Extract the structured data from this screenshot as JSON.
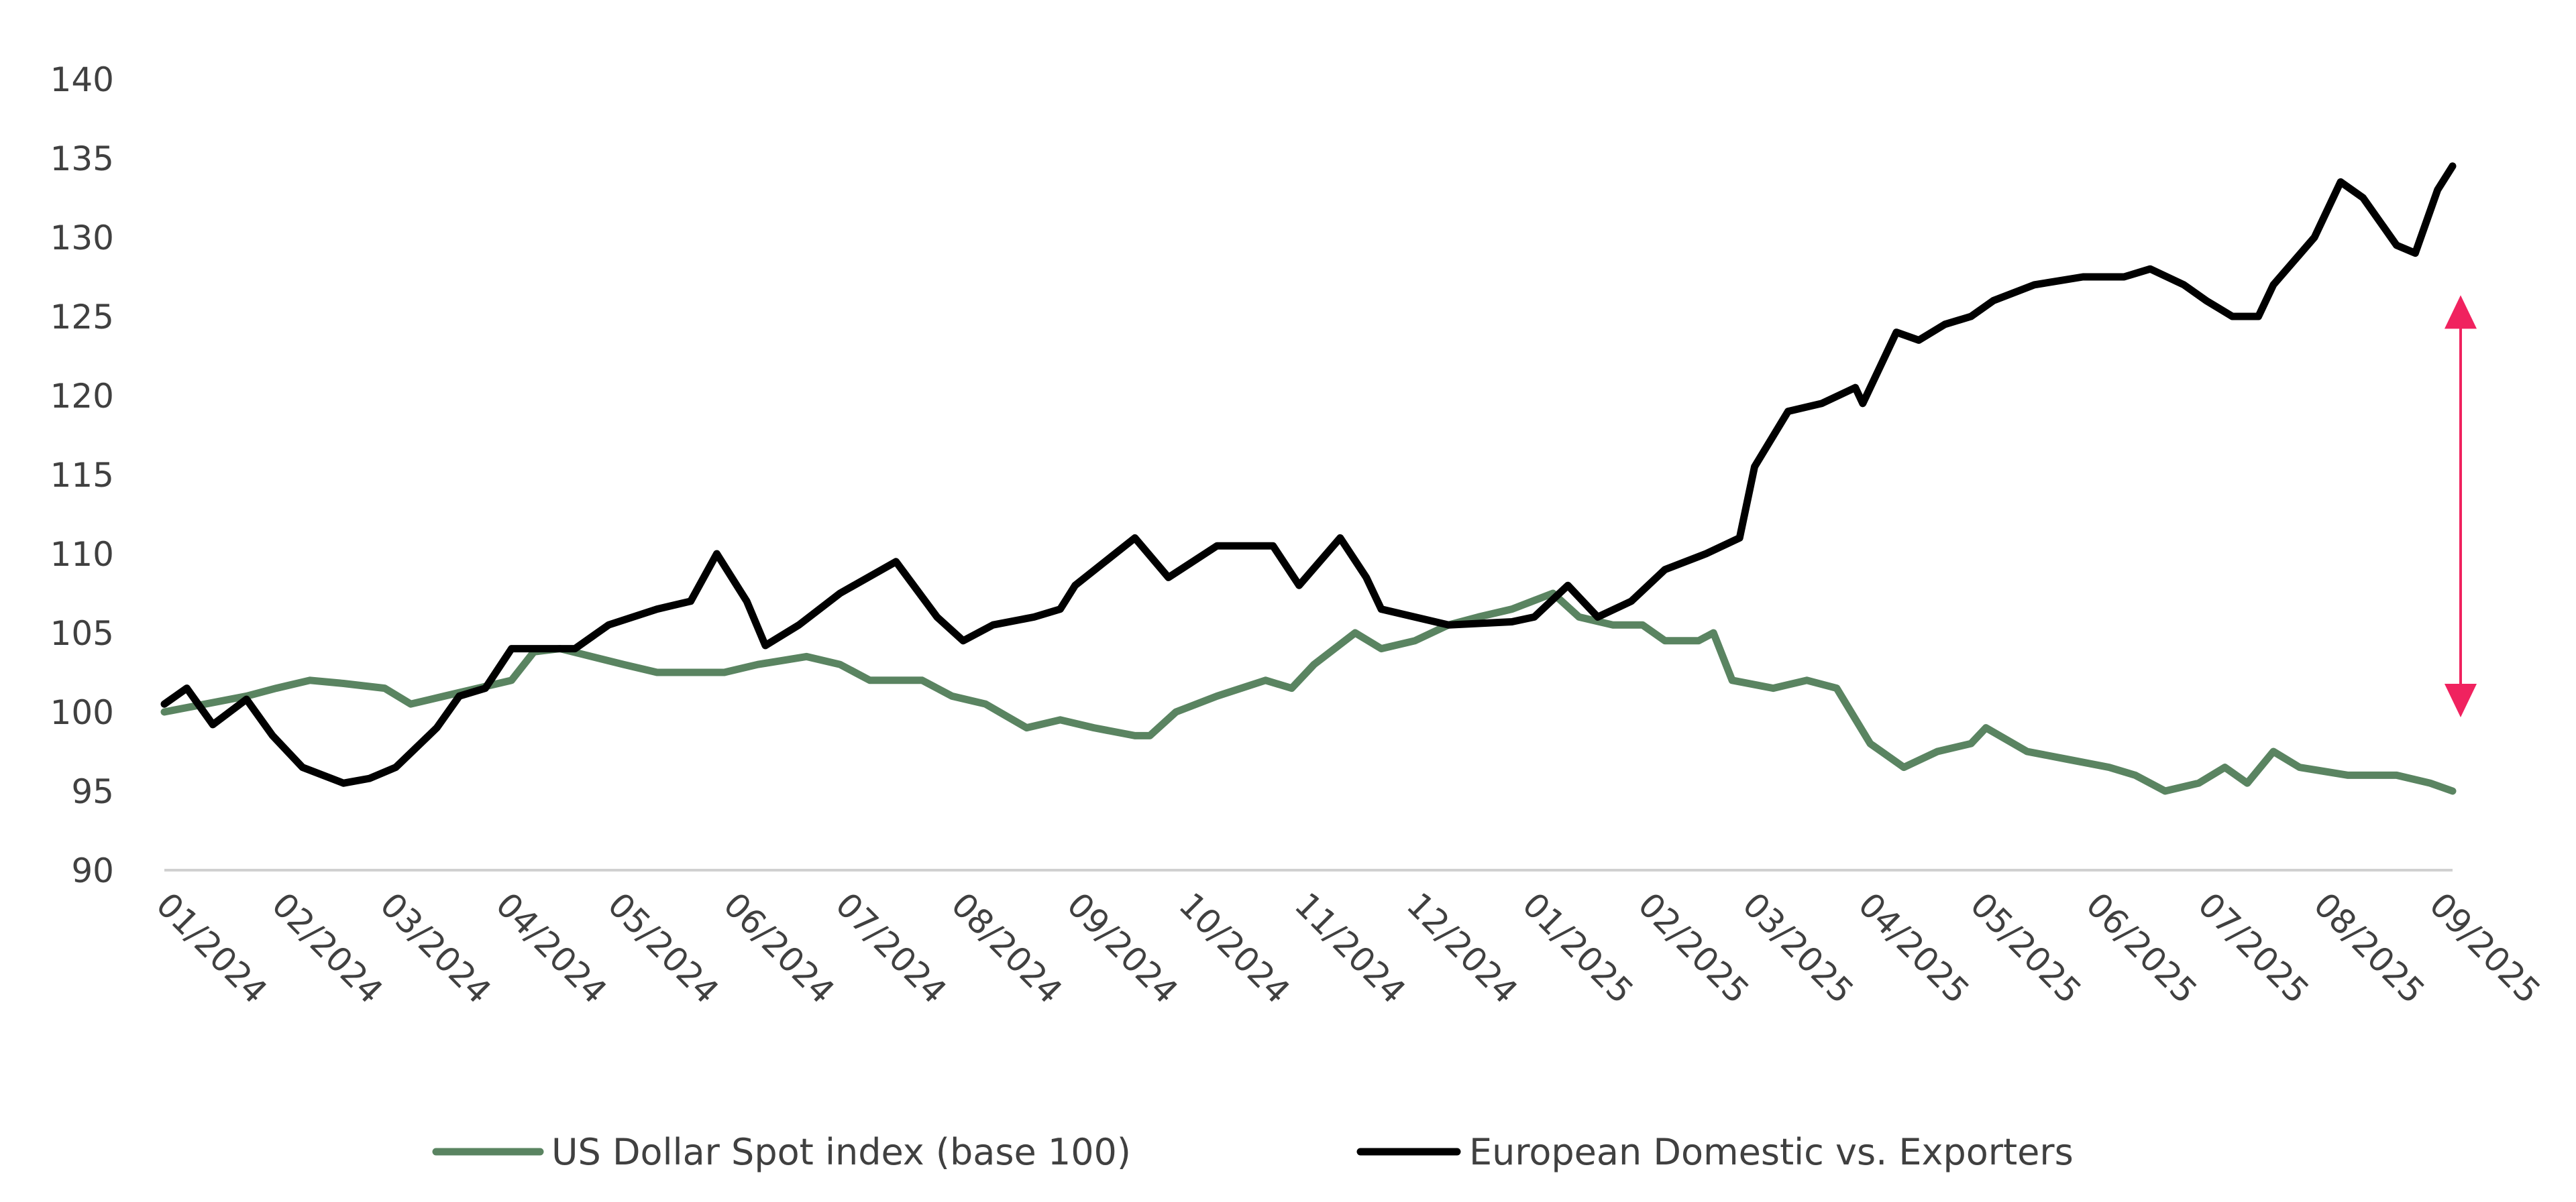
{
  "chart_data": {
    "type": "line",
    "title": "",
    "xlabel": "",
    "ylabel": "",
    "ylim": [
      90,
      140
    ],
    "yticks": [
      "90",
      "95",
      "100",
      "105",
      "110",
      "115",
      "120",
      "125",
      "130",
      "135",
      "140"
    ],
    "xlim": [
      "2024-01-01",
      "2025-09-05"
    ],
    "xticks": [
      "01/2024",
      "02/2024",
      "03/2024",
      "04/2024",
      "05/2024",
      "06/2024",
      "07/2024",
      "08/2024",
      "09/2024",
      "10/2024",
      "11/2024",
      "12/2024",
      "01/2025",
      "02/2025",
      "03/2025",
      "04/2025",
      "05/2025",
      "06/2025",
      "07/2025",
      "08/2025",
      "09/2025"
    ],
    "grid": false,
    "legend_position": "bottom",
    "series": [
      {
        "name": "US Dollar Spot index (base 100)",
        "color": "#5A8461",
        "points": [
          [
            "2024-01-01",
            100
          ],
          [
            "2024-01-23",
            101
          ],
          [
            "2024-01-31",
            101.5
          ],
          [
            "2024-02-09",
            102
          ],
          [
            "2024-02-18",
            101.8
          ],
          [
            "2024-02-29",
            101.5
          ],
          [
            "2024-03-07",
            100.5
          ],
          [
            "2024-03-16",
            101
          ],
          [
            "2024-03-25",
            101.5
          ],
          [
            "2024-04-03",
            102
          ],
          [
            "2024-04-09",
            103.8
          ],
          [
            "2024-04-16",
            104
          ],
          [
            "2024-05-03",
            103
          ],
          [
            "2024-05-12",
            102.5
          ],
          [
            "2024-05-30",
            102.5
          ],
          [
            "2024-06-08",
            103
          ],
          [
            "2024-06-21",
            103.5
          ],
          [
            "2024-06-30",
            103
          ],
          [
            "2024-07-08",
            102
          ],
          [
            "2024-07-22",
            102
          ],
          [
            "2024-07-30",
            101
          ],
          [
            "2024-08-08",
            100.5
          ],
          [
            "2024-08-19",
            99
          ],
          [
            "2024-08-28",
            99.5
          ],
          [
            "2024-09-06",
            99
          ],
          [
            "2024-09-17",
            98.5
          ],
          [
            "2024-09-21",
            98.5
          ],
          [
            "2024-09-28",
            100
          ],
          [
            "2024-10-09",
            101
          ],
          [
            "2024-10-22",
            102
          ],
          [
            "2024-10-29",
            101.5
          ],
          [
            "2024-11-04",
            103
          ],
          [
            "2024-11-15",
            105
          ],
          [
            "2024-11-22",
            104
          ],
          [
            "2024-12-01",
            104.5
          ],
          [
            "2024-12-10",
            105.5
          ],
          [
            "2024-12-18",
            106
          ],
          [
            "2024-12-27",
            106.5
          ],
          [
            "2025-01-07",
            107.5
          ],
          [
            "2025-01-14",
            106
          ],
          [
            "2025-01-23",
            105.5
          ],
          [
            "2025-01-31",
            105.5
          ],
          [
            "2025-02-06",
            104.5
          ],
          [
            "2025-02-15",
            104.5
          ],
          [
            "2025-02-19",
            105
          ],
          [
            "2025-02-24",
            102
          ],
          [
            "2025-03-07",
            101.5
          ],
          [
            "2025-03-16",
            102
          ],
          [
            "2025-03-24",
            101.5
          ],
          [
            "2025-04-02",
            98
          ],
          [
            "2025-04-11",
            96.5
          ],
          [
            "2025-04-20",
            97.5
          ],
          [
            "2025-04-29",
            98
          ],
          [
            "2025-05-03",
            99
          ],
          [
            "2025-05-14",
            97.5
          ],
          [
            "2025-05-25",
            97
          ],
          [
            "2025-06-05",
            96.5
          ],
          [
            "2025-06-12",
            96
          ],
          [
            "2025-06-20",
            95
          ],
          [
            "2025-06-29",
            95.5
          ],
          [
            "2025-07-06",
            96.5
          ],
          [
            "2025-07-12",
            95.5
          ],
          [
            "2025-07-19",
            97.5
          ],
          [
            "2025-07-26",
            96.5
          ],
          [
            "2025-08-08",
            96
          ],
          [
            "2025-08-21",
            96
          ],
          [
            "2025-08-30",
            95.5
          ],
          [
            "2025-09-05",
            95
          ]
        ]
      },
      {
        "name": "European Domestic vs. Exporters",
        "color": "#000000",
        "points": [
          [
            "2024-01-01",
            100.5
          ],
          [
            "2024-01-07",
            101.5
          ],
          [
            "2024-01-14",
            99.2
          ],
          [
            "2024-01-23",
            100.8
          ],
          [
            "2024-01-30",
            98.5
          ],
          [
            "2024-02-07",
            96.5
          ],
          [
            "2024-02-18",
            95.5
          ],
          [
            "2024-02-25",
            95.8
          ],
          [
            "2024-03-03",
            96.5
          ],
          [
            "2024-03-14",
            99
          ],
          [
            "2024-03-20",
            101
          ],
          [
            "2024-03-27",
            101.5
          ],
          [
            "2024-04-03",
            104
          ],
          [
            "2024-04-20",
            104
          ],
          [
            "2024-04-29",
            105.5
          ],
          [
            "2024-05-12",
            106.5
          ],
          [
            "2024-05-21",
            107
          ],
          [
            "2024-05-28",
            110
          ],
          [
            "2024-06-05",
            107
          ],
          [
            "2024-06-10",
            104.2
          ],
          [
            "2024-06-19",
            105.5
          ],
          [
            "2024-06-30",
            107.5
          ],
          [
            "2024-07-15",
            109.5
          ],
          [
            "2024-07-26",
            106
          ],
          [
            "2024-08-02",
            104.5
          ],
          [
            "2024-08-10",
            105.5
          ],
          [
            "2024-08-21",
            106
          ],
          [
            "2024-08-28",
            106.5
          ],
          [
            "2024-09-01",
            108
          ],
          [
            "2024-09-17",
            111
          ],
          [
            "2024-09-26",
            108.5
          ],
          [
            "2024-10-09",
            110.5
          ],
          [
            "2024-10-24",
            110.5
          ],
          [
            "2024-10-31",
            108
          ],
          [
            "2024-11-11",
            111
          ],
          [
            "2024-11-18",
            108.5
          ],
          [
            "2024-11-22",
            106.5
          ],
          [
            "2024-12-10",
            105.5
          ],
          [
            "2024-12-27",
            105.7
          ],
          [
            "2025-01-02",
            106
          ],
          [
            "2025-01-11",
            108
          ],
          [
            "2025-01-19",
            106
          ],
          [
            "2025-01-28",
            107
          ],
          [
            "2025-02-06",
            109
          ],
          [
            "2025-02-17",
            110
          ],
          [
            "2025-02-26",
            111
          ],
          [
            "2025-03-02",
            115.5
          ],
          [
            "2025-03-11",
            119
          ],
          [
            "2025-03-20",
            119.5
          ],
          [
            "2025-03-29",
            120.5
          ],
          [
            "2025-03-31",
            119.5
          ],
          [
            "2025-04-09",
            124
          ],
          [
            "2025-04-15",
            123.5
          ],
          [
            "2025-04-22",
            124.5
          ],
          [
            "2025-04-29",
            125
          ],
          [
            "2025-05-05",
            126
          ],
          [
            "2025-05-16",
            127
          ],
          [
            "2025-05-29",
            127.5
          ],
          [
            "2025-06-09",
            127.5
          ],
          [
            "2025-06-16",
            128
          ],
          [
            "2025-06-25",
            127
          ],
          [
            "2025-07-01",
            126
          ],
          [
            "2025-07-08",
            125
          ],
          [
            "2025-07-15",
            125
          ],
          [
            "2025-07-19",
            127
          ],
          [
            "2025-07-30",
            130
          ],
          [
            "2025-08-06",
            133.5
          ],
          [
            "2025-08-12",
            132.5
          ],
          [
            "2025-08-21",
            129.5
          ],
          [
            "2025-08-26",
            129
          ],
          [
            "2025-09-01",
            133
          ],
          [
            "2025-09-05",
            134.5
          ]
        ]
      }
    ],
    "annotations": [
      {
        "type": "double-arrow",
        "color": "#F0225F",
        "date": "2025-09-05",
        "from": 100,
        "to": 126
      }
    ]
  }
}
